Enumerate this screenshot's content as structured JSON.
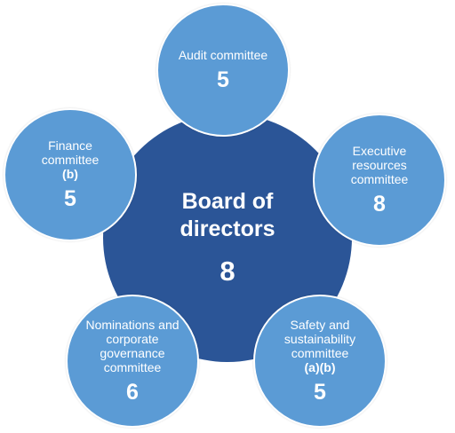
{
  "center": {
    "title": "Board of directors",
    "count": "8"
  },
  "committees": {
    "audit": {
      "label": "Audit committee",
      "note": "",
      "count": "5"
    },
    "executive": {
      "label": "Executive resources committee",
      "note": "",
      "count": "8"
    },
    "finance": {
      "label": "Finance committee",
      "note": "(b)",
      "count": "5"
    },
    "nominations": {
      "label": "Nominations and corporate governance committee",
      "note": "",
      "count": "6"
    },
    "safety": {
      "label": "Safety and sustainability committee",
      "note": "(a)(b)",
      "count": "5"
    }
  },
  "colors": {
    "center": "#2b5597",
    "satellite": "#5b9bd5",
    "text": "#ffffff"
  }
}
